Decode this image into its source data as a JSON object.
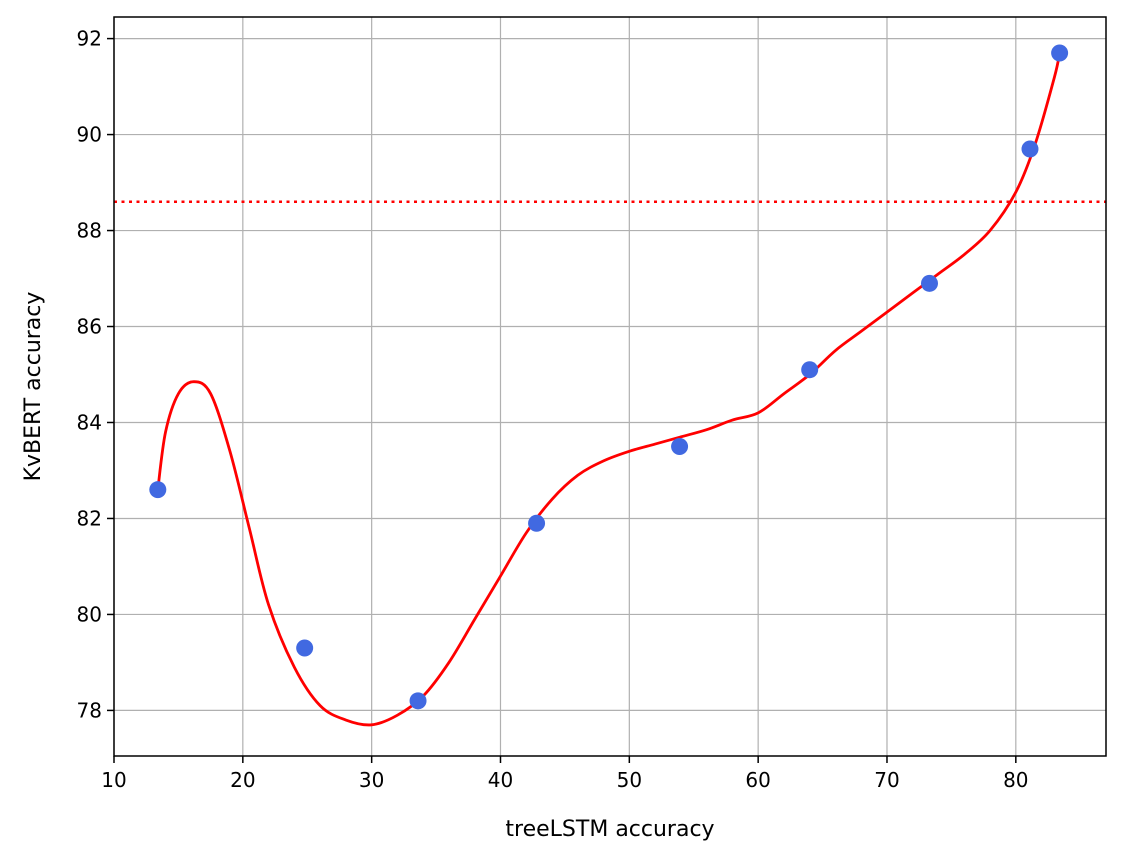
{
  "chart_data": {
    "type": "scatter",
    "title": "",
    "xlabel": "treeLSTM accuracy",
    "ylabel": "KvBERT accuracy",
    "xlim": [
      10,
      87
    ],
    "ylim": [
      77.05,
      92.45
    ],
    "x_ticks": [
      10,
      20,
      30,
      40,
      50,
      60,
      70,
      80
    ],
    "y_ticks": [
      78,
      80,
      82,
      84,
      86,
      88,
      90,
      92
    ],
    "grid": true,
    "legend": "none",
    "points": {
      "color": "#4169E1",
      "x": [
        13.4,
        24.8,
        33.6,
        42.8,
        53.9,
        64.0,
        73.3,
        81.1,
        83.4
      ],
      "y": [
        82.6,
        79.3,
        78.2,
        81.9,
        83.5,
        85.1,
        86.9,
        89.7,
        91.7
      ]
    },
    "fitted_curve": {
      "color": "#FF0000",
      "style": "solid",
      "x": [
        13.4,
        14.0,
        15.0,
        16.2,
        17.5,
        19.0,
        20.5,
        22.0,
        24.0,
        26.0,
        28.0,
        30.0,
        32.0,
        34.0,
        36.0,
        38.0,
        40.0,
        42.0,
        44.0,
        46.0,
        48.0,
        50.0,
        52.0,
        54.0,
        56.0,
        58.0,
        60.0,
        62.0,
        64.0,
        66.0,
        68.0,
        70.0,
        72.0,
        74.0,
        76.0,
        78.0,
        80.0,
        81.5,
        83.0,
        83.4
      ],
      "y": [
        82.6,
        83.8,
        84.6,
        84.85,
        84.6,
        83.4,
        81.8,
        80.2,
        78.9,
        78.1,
        77.8,
        77.7,
        77.9,
        78.3,
        79.0,
        79.9,
        80.8,
        81.7,
        82.4,
        82.9,
        83.2,
        83.4,
        83.55,
        83.7,
        83.85,
        84.05,
        84.2,
        84.6,
        85.0,
        85.5,
        85.9,
        86.3,
        86.7,
        87.1,
        87.5,
        88.0,
        88.8,
        89.8,
        91.2,
        91.7
      ]
    },
    "reference_line": {
      "y": 88.6,
      "color": "#FF0000",
      "style": "dotted"
    }
  }
}
